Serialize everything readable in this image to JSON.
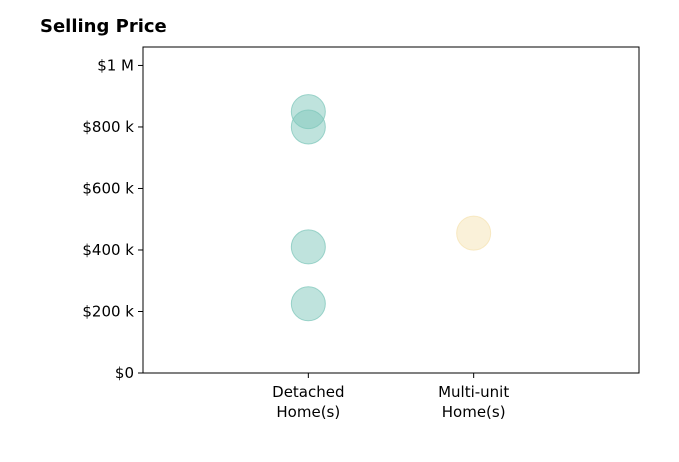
{
  "chart_data": {
    "type": "scatter",
    "title": "Selling Price",
    "xlabel": "",
    "ylabel": "",
    "categories": [
      [
        "Detached",
        "Home(s)"
      ],
      [
        "Multi-unit",
        "Home(s)"
      ]
    ],
    "x_range": [
      -1,
      2
    ],
    "ylim": [
      0,
      1060000
    ],
    "y_ticks": [
      {
        "value": 0,
        "label": "$0"
      },
      {
        "value": 200000,
        "label": "$200 k"
      },
      {
        "value": 400000,
        "label": "$400 k"
      },
      {
        "value": 600000,
        "label": "$600 k"
      },
      {
        "value": 800000,
        "label": "$800 k"
      },
      {
        "value": 1000000,
        "label": "$1 M"
      }
    ],
    "grid": false,
    "legend": "none",
    "series": [
      {
        "category_index": 0,
        "color": "#7fc7bb",
        "values": [
          850000,
          800000,
          410000,
          225000
        ]
      },
      {
        "category_index": 1,
        "color": "#f5e3b3",
        "values": [
          455000
        ]
      }
    ]
  }
}
